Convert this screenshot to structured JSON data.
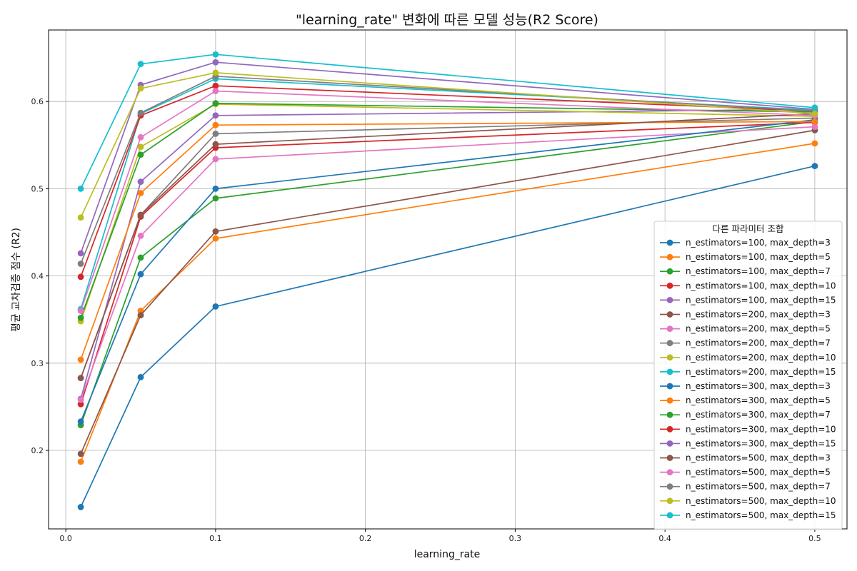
{
  "chart_data": {
    "type": "line",
    "title": "\"learning_rate\" 변화에 따른 모델 성능(R2 Score)",
    "xlabel": "learning_rate",
    "ylabel": "평균 교차검증 점수 (R2)",
    "x": [
      0.01,
      0.05,
      0.1,
      0.5
    ],
    "xlim": [
      -0.0115,
      0.5215
    ],
    "ylim": [
      0.11,
      0.682
    ],
    "xticks": [
      0.0,
      0.1,
      0.2,
      0.3,
      0.4,
      0.5
    ],
    "xtick_labels": [
      "0.0",
      "0.1",
      "0.2",
      "0.3",
      "0.4",
      "0.5"
    ],
    "yticks": [
      0.2,
      0.3,
      0.4,
      0.5,
      0.6
    ],
    "ytick_labels": [
      "0.2",
      "0.3",
      "0.4",
      "0.5",
      "0.6"
    ],
    "grid": true,
    "legend_title": "다른 파라미터 조합",
    "legend_position": "right",
    "series": [
      {
        "name": "n_estimators=100, max_depth=3",
        "color": "#1f77b4",
        "values": [
          0.135,
          0.284,
          0.365,
          0.526
        ]
      },
      {
        "name": "n_estimators=100, max_depth=5",
        "color": "#ff7f0e",
        "values": [
          0.187,
          0.36,
          0.443,
          0.552
        ]
      },
      {
        "name": "n_estimators=100, max_depth=7",
        "color": "#2ca02c",
        "values": [
          0.229,
          0.421,
          0.489,
          0.577
        ]
      },
      {
        "name": "n_estimators=100, max_depth=10",
        "color": "#d62728",
        "values": [
          0.253,
          0.468,
          0.547,
          0.576
        ]
      },
      {
        "name": "n_estimators=100, max_depth=15",
        "color": "#9467bd",
        "values": [
          0.259,
          0.508,
          0.584,
          0.591
        ]
      },
      {
        "name": "n_estimators=200, max_depth=3",
        "color": "#8c564b",
        "values": [
          0.196,
          0.355,
          0.451,
          0.567
        ]
      },
      {
        "name": "n_estimators=200, max_depth=5",
        "color": "#e377c2",
        "values": [
          0.258,
          0.446,
          0.534,
          0.571
        ]
      },
      {
        "name": "n_estimators=200, max_depth=7",
        "color": "#7f7f7f",
        "values": [
          0.283,
          0.47,
          0.563,
          0.581
        ]
      },
      {
        "name": "n_estimators=200, max_depth=10",
        "color": "#bcbd22",
        "values": [
          0.348,
          0.548,
          0.597,
          0.583
        ]
      },
      {
        "name": "n_estimators=200, max_depth=15",
        "color": "#17becf",
        "values": [
          0.362,
          0.586,
          0.626,
          0.59
        ]
      },
      {
        "name": "n_estimators=300, max_depth=3",
        "color": "#1f77b4",
        "values": [
          0.233,
          0.402,
          0.5,
          0.579
        ]
      },
      {
        "name": "n_estimators=300, max_depth=5",
        "color": "#ff7f0e",
        "values": [
          0.304,
          0.495,
          0.573,
          0.577
        ]
      },
      {
        "name": "n_estimators=300, max_depth=7",
        "color": "#2ca02c",
        "values": [
          0.352,
          0.539,
          0.598,
          0.588
        ]
      },
      {
        "name": "n_estimators=300, max_depth=10",
        "color": "#d62728",
        "values": [
          0.399,
          0.584,
          0.618,
          0.589
        ]
      },
      {
        "name": "n_estimators=300, max_depth=15",
        "color": "#9467bd",
        "values": [
          0.426,
          0.619,
          0.645,
          0.591
        ]
      },
      {
        "name": "n_estimators=500, max_depth=3",
        "color": "#8c564b",
        "values": [
          0.283,
          0.47,
          0.551,
          0.586
        ]
      },
      {
        "name": "n_estimators=500, max_depth=5",
        "color": "#e377c2",
        "values": [
          0.36,
          0.559,
          0.612,
          0.584
        ]
      },
      {
        "name": "n_estimators=500, max_depth=7",
        "color": "#7f7f7f",
        "values": [
          0.414,
          0.587,
          0.629,
          0.589
        ]
      },
      {
        "name": "n_estimators=500, max_depth=10",
        "color": "#bcbd22",
        "values": [
          0.467,
          0.615,
          0.633,
          0.586
        ]
      },
      {
        "name": "n_estimators=500, max_depth=15",
        "color": "#17becf",
        "values": [
          0.5,
          0.643,
          0.654,
          0.593
        ]
      }
    ]
  }
}
